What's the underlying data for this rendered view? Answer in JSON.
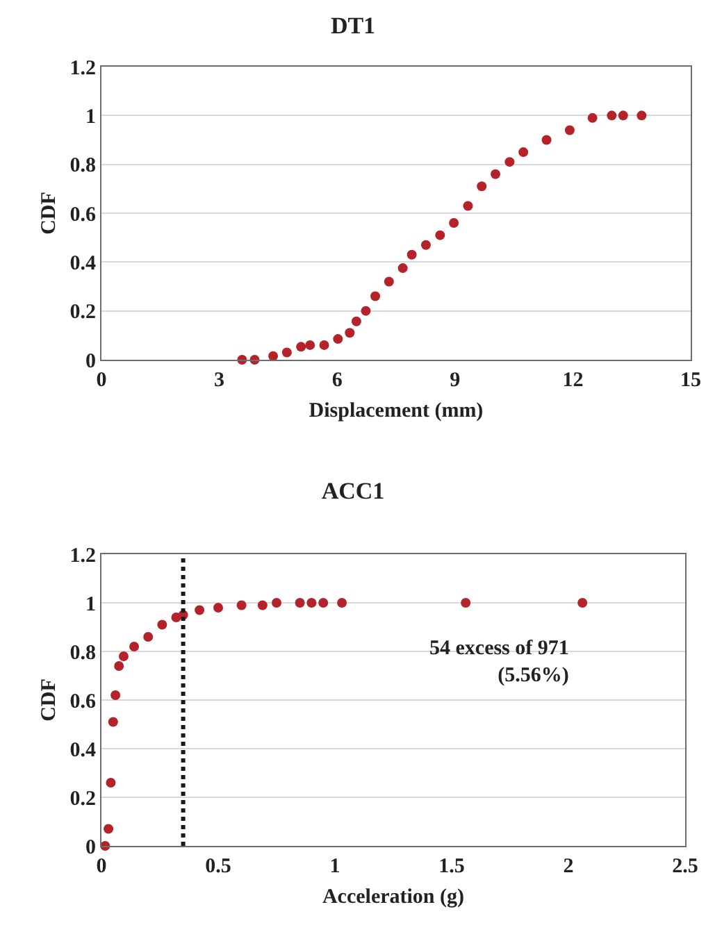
{
  "chart_data": [
    {
      "type": "scatter",
      "title": "DT1",
      "xlabel": "Displacement (mm)",
      "ylabel": "CDF",
      "xlim": [
        0,
        15
      ],
      "ylim": [
        0,
        1.2
      ],
      "xticks": [
        0,
        3,
        6,
        9,
        12,
        15
      ],
      "yticks": [
        0,
        0.2,
        0.4,
        0.6,
        0.8,
        1,
        1.2
      ],
      "grid": "y",
      "marker": "circle",
      "x": [
        3.58,
        3.9,
        4.37,
        4.72,
        5.08,
        5.31,
        5.67,
        6.02,
        6.32,
        6.49,
        6.73,
        6.97,
        7.32,
        7.67,
        7.9,
        8.26,
        8.62,
        8.97,
        9.33,
        9.68,
        10.03,
        10.39,
        10.74,
        11.33,
        11.92,
        12.5,
        12.99,
        13.28,
        13.75
      ],
      "series": [
        {
          "color": "#b5232a",
          "values": [
            0,
            0,
            0.015,
            0.03,
            0.053,
            0.06,
            0.06,
            0.085,
            0.11,
            0.157,
            0.2,
            0.26,
            0.32,
            0.375,
            0.43,
            0.47,
            0.51,
            0.56,
            0.63,
            0.71,
            0.76,
            0.81,
            0.85,
            0.9,
            0.94,
            0.99,
            1,
            1,
            1
          ]
        }
      ]
    },
    {
      "type": "scatter",
      "title": "ACC1",
      "xlabel": "Acceleration (g)",
      "ylabel": "CDF",
      "xlim": [
        0,
        2.5
      ],
      "ylim": [
        0,
        1.2
      ],
      "xticks": [
        0,
        0.5,
        1,
        1.5,
        2,
        2.5
      ],
      "yticks": [
        0,
        0.2,
        0.4,
        0.6,
        0.8,
        1,
        1.2
      ],
      "grid": "y",
      "marker": "circle",
      "x": [
        0.016,
        0.03,
        0.04,
        0.05,
        0.06,
        0.075,
        0.095,
        0.14,
        0.2,
        0.26,
        0.32,
        0.35,
        0.42,
        0.5,
        0.6,
        0.69,
        0.75,
        0.85,
        0.9,
        0.95,
        1.03,
        1.56,
        2.06
      ],
      "series": [
        {
          "color": "#b5232a",
          "values": [
            0,
            0.07,
            0.26,
            0.51,
            0.62,
            0.74,
            0.78,
            0.82,
            0.86,
            0.91,
            0.94,
            0.95,
            0.97,
            0.98,
            0.99,
            0.99,
            1,
            1,
            1,
            1,
            1,
            1,
            1
          ]
        }
      ],
      "ref_lines": [
        {
          "axis": "x",
          "value": 0.35,
          "color": "#1a1a1a",
          "line_style": "dotted"
        }
      ],
      "annotations": [
        "54 excess of 971\n(5.56%)"
      ]
    }
  ]
}
